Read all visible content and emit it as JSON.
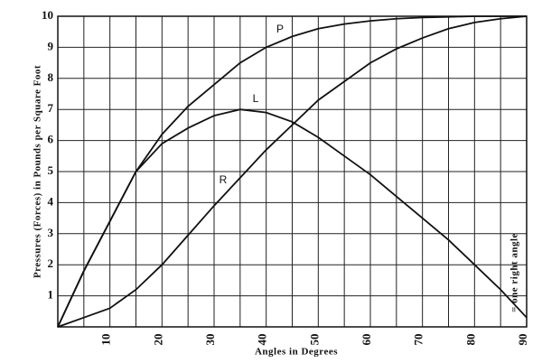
{
  "chart_data": {
    "type": "line",
    "x_label": "Angles in Degrees",
    "y_label": "Pressures (Forces) in Pounds per Square Foot",
    "annotation": "= one right angle",
    "x": [
      0,
      5,
      10,
      15,
      20,
      25,
      30,
      35,
      40,
      45,
      50,
      55,
      60,
      65,
      70,
      75,
      80,
      85,
      90
    ],
    "series": [
      {
        "name": "P",
        "color": "#111111",
        "values": [
          0,
          1.8,
          3.4,
          5.0,
          6.2,
          7.1,
          7.8,
          8.5,
          9.0,
          9.35,
          9.6,
          9.75,
          9.85,
          9.92,
          9.96,
          9.98,
          10,
          10,
          10
        ]
      },
      {
        "name": "L",
        "color": "#111111",
        "values": [
          0,
          1.8,
          3.4,
          5.0,
          5.9,
          6.4,
          6.8,
          7.0,
          6.9,
          6.6,
          6.1,
          5.5,
          4.9,
          4.2,
          3.5,
          2.8,
          2.0,
          1.2,
          0.3
        ]
      },
      {
        "name": "R",
        "color": "#111111",
        "values": [
          0,
          0.3,
          0.6,
          1.2,
          2.0,
          2.95,
          3.9,
          4.8,
          5.7,
          6.5,
          7.3,
          7.9,
          8.5,
          8.95,
          9.3,
          9.6,
          9.8,
          9.92,
          10
        ]
      }
    ],
    "xlim": [
      0,
      90
    ],
    "ylim": [
      0,
      10
    ],
    "xticks": [
      10,
      20,
      30,
      40,
      50,
      60,
      70,
      80,
      90
    ],
    "yticks": [
      1,
      2,
      3,
      4,
      5,
      6,
      7,
      8,
      9,
      10
    ],
    "grid": true
  }
}
